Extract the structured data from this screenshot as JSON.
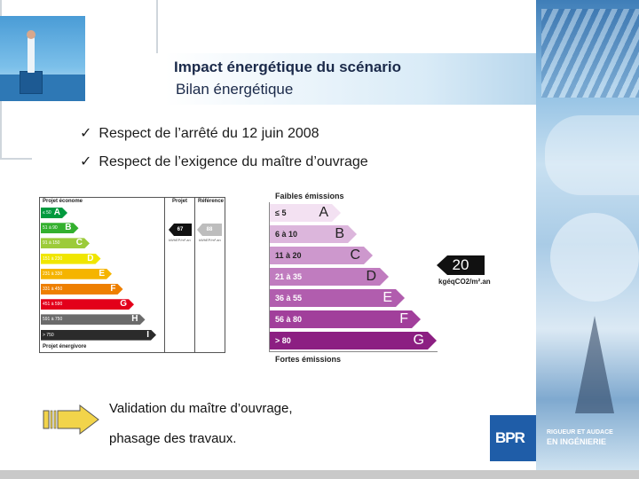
{
  "title": {
    "line1": "Impact énergétique du scénario",
    "line2": "Bilan énergétique"
  },
  "checklist": [
    {
      "icon": "check-mark-icon",
      "mark": "ü",
      "text": "Respect de l’arrêté du 12 juin 2008"
    },
    {
      "icon": "check-mark-icon",
      "mark": "ü",
      "text": "Respect de l’exigence du maître d’ouvrage"
    }
  ],
  "energy_label": {
    "header_left": "Projet économe",
    "header_col1": "Projet",
    "header_col2": "Référence",
    "footer": "Projet énergivore",
    "classes": [
      {
        "range": "≤ 50",
        "letter": "A",
        "color": "#009a3e"
      },
      {
        "range": "51 à 90",
        "letter": "B",
        "color": "#33b02e"
      },
      {
        "range": "91 à 150",
        "letter": "C",
        "color": "#9ccb3a"
      },
      {
        "range": "151 à 230",
        "letter": "D",
        "color": "#f0e600"
      },
      {
        "range": "231 à 330",
        "letter": "E",
        "color": "#f5b400"
      },
      {
        "range": "331 à 450",
        "letter": "F",
        "color": "#ee7f00"
      },
      {
        "range": "451 à 590",
        "letter": "G",
        "color": "#e3001a"
      },
      {
        "range": "591 à 750",
        "letter": "H",
        "color": "#6b6b6b"
      },
      {
        "range": "> 750",
        "letter": "I",
        "color": "#2b2b2b"
      }
    ],
    "project_value": "67",
    "reference_value": "88",
    "unit_small": "kWhEP/m².an"
  },
  "emissions_label": {
    "top_caption": "Faibles émissions",
    "bottom_caption": "Fortes émissions",
    "classes": [
      {
        "range": "≤ 5",
        "letter": "A",
        "color": "#f3e1f2",
        "text_color": "#222222"
      },
      {
        "range": "6 à 10",
        "letter": "B",
        "color": "#dcb6dc",
        "text_color": "#222222"
      },
      {
        "range": "11 à 20",
        "letter": "C",
        "color": "#cd98cd",
        "text_color": "#222222"
      },
      {
        "range": "21 à 35",
        "letter": "D",
        "color": "#c07cbf",
        "text_color": "#ffffff"
      },
      {
        "range": "36 à 55",
        "letter": "E",
        "color": "#b15dae",
        "text_color": "#ffffff"
      },
      {
        "range": "56 à 80",
        "letter": "F",
        "color": "#a13f9b",
        "text_color": "#ffffff"
      },
      {
        "range": "> 80",
        "letter": "G",
        "color": "#8c1f82",
        "text_color": "#ffffff"
      }
    ],
    "value": "20",
    "unit": "kgéqCO2/m².an"
  },
  "validation": {
    "icon": "arrow-right-icon",
    "line1": "Validation du maître d’ouvrage,",
    "line2": "phasage des travaux."
  },
  "logo": {
    "text": "BPR",
    "tagline1": "RIGUEUR ET AUDACE",
    "tagline2": "EN INGÉNIERIE",
    "color": "#1f5da8"
  }
}
